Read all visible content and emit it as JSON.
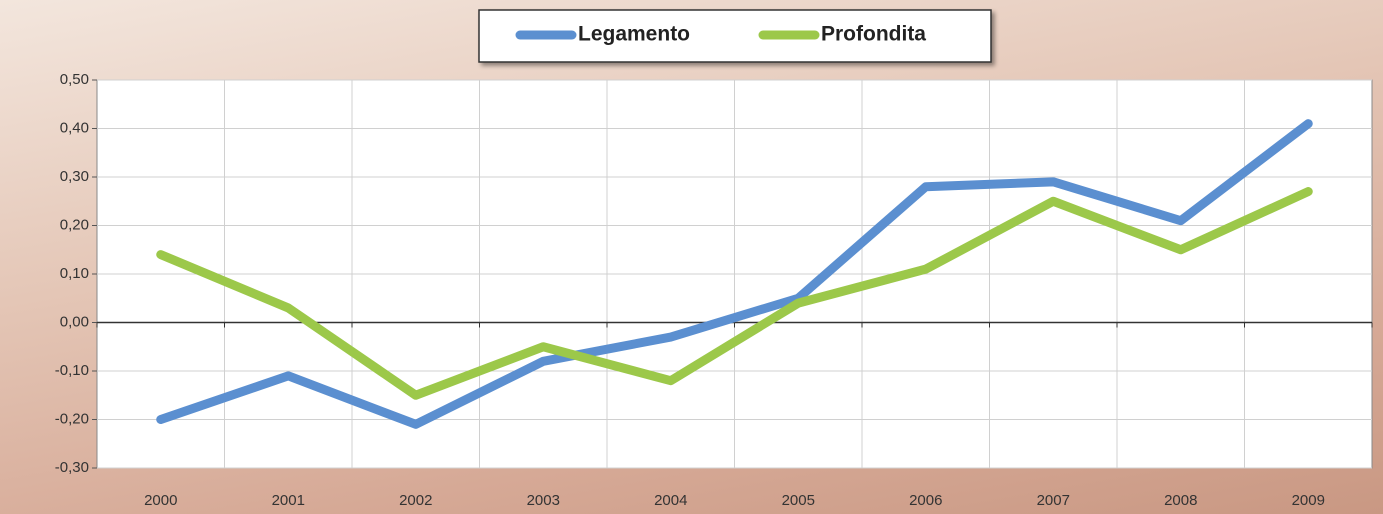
{
  "chart_data": {
    "type": "line",
    "categories": [
      "2000",
      "2001",
      "2002",
      "2003",
      "2004",
      "2005",
      "2006",
      "2007",
      "2008",
      "2009"
    ],
    "series": [
      {
        "name": "Legamento",
        "color": "#5b8fd0",
        "values": [
          -0.2,
          -0.11,
          -0.21,
          -0.08,
          -0.03,
          0.05,
          0.28,
          0.29,
          0.21,
          0.41
        ]
      },
      {
        "name": "Profondita",
        "color": "#9cc84a",
        "values": [
          0.14,
          0.03,
          -0.15,
          -0.05,
          -0.12,
          0.04,
          0.11,
          0.25,
          0.15,
          0.27
        ]
      }
    ],
    "ylim": [
      -0.3,
      0.5
    ],
    "yticks": [
      {
        "value": -0.3,
        "label": "-0,30"
      },
      {
        "value": -0.2,
        "label": "-0,20"
      },
      {
        "value": -0.1,
        "label": "-0,10"
      },
      {
        "value": 0,
        "label": "0,00"
      },
      {
        "value": 0.1,
        "label": "0,10"
      },
      {
        "value": 0.2,
        "label": "0,20"
      },
      {
        "value": 0.3,
        "label": "0,30"
      },
      {
        "value": 0.4,
        "label": "0,40"
      },
      {
        "value": 0.5,
        "label": "0,50"
      }
    ],
    "grid": true,
    "legend": "top"
  }
}
